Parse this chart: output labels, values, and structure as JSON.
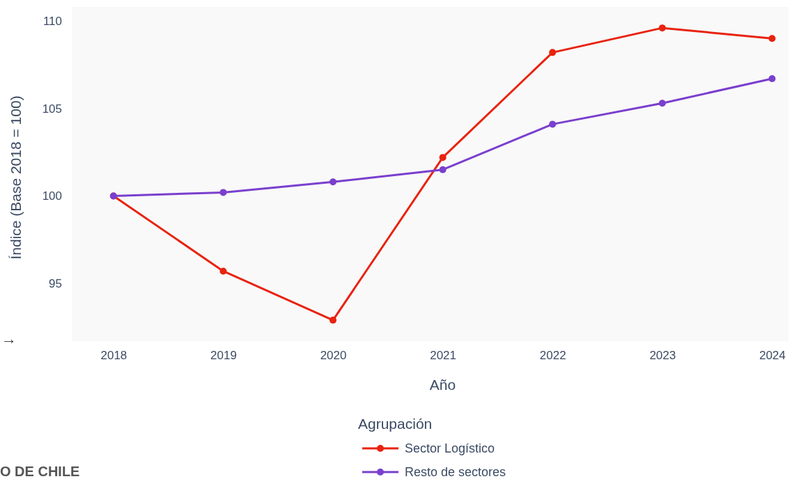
{
  "chart_data": {
    "type": "line",
    "xlabel": "Año",
    "ylabel": "Índice (Base 2018 = 100)",
    "legend_title": "Agrupación",
    "x": [
      2018,
      2019,
      2020,
      2021,
      2022,
      2023,
      2024
    ],
    "series": [
      {
        "name": "Sector Logístico",
        "color": "#e8230f",
        "values": [
          100,
          95.7,
          92.9,
          102.2,
          108.2,
          109.6,
          109.0
        ]
      },
      {
        "name": "Resto de sectores",
        "color": "#7a3fce",
        "values": [
          100,
          100.2,
          100.8,
          101.5,
          104.1,
          105.3,
          106.7
        ]
      }
    ],
    "xlim": [
      2017.62,
      2024.15
    ],
    "xticks": [
      2018,
      2019,
      2020,
      2021,
      2022,
      2023,
      2024
    ],
    "ylim": [
      91.7,
      110.8
    ],
    "yticks": [
      95,
      100,
      105,
      110
    ],
    "grid": false,
    "legend": "bottom",
    "marker": "circle",
    "line_style": "solid",
    "annotations": [
      "→",
      "O DE CHILE"
    ]
  }
}
